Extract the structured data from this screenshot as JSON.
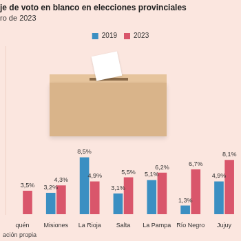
{
  "chart_data": {
    "type": "bar",
    "title": "je de voto en blanco en elecciones provinciales",
    "subtitle": "ro de 2023",
    "source": "ación propia",
    "categories": [
      "quén",
      "Misiones",
      "La Rioja",
      "Salta",
      "La Pampa",
      "Río Negro",
      "Jujuy"
    ],
    "series": [
      {
        "name": "2019",
        "color": "#3b8fc2",
        "values": [
          null,
          3.2,
          8.5,
          3.1,
          5.1,
          1.3,
          4.9
        ],
        "value_labels": [
          null,
          "3,2%",
          "8,5%",
          "3,1%",
          "5,1%",
          "1,3%",
          "4,9%"
        ]
      },
      {
        "name": "2023",
        "color": "#d9566b",
        "values": [
          3.5,
          4.3,
          4.9,
          5.5,
          6.2,
          6.7,
          8.1
        ],
        "value_labels": [
          "3,5%",
          "4,3%",
          "4,9%",
          "5,5%",
          "6,2%",
          "6,7%",
          "8,1%"
        ]
      }
    ],
    "ylim": [
      0,
      25
    ],
    "grid": false,
    "legend": "top",
    "data_labels": true,
    "tick_labels": "x"
  }
}
